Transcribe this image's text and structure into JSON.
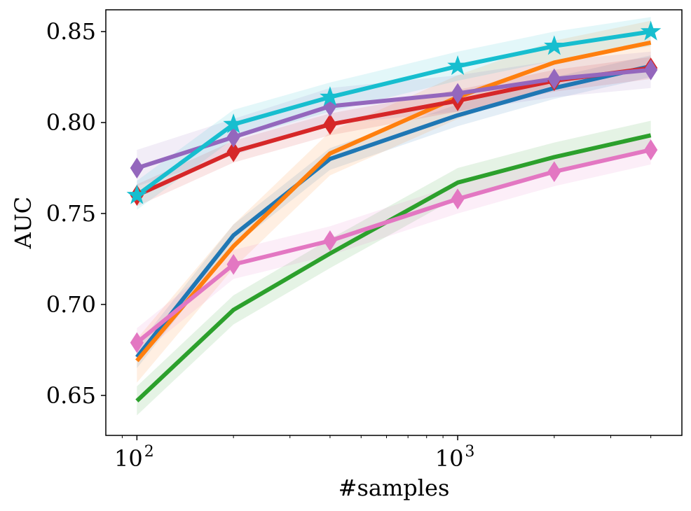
{
  "chart_data": {
    "type": "line",
    "title": "",
    "xlabel": "#samples",
    "ylabel": "AUC",
    "xscale": "log",
    "xlim": [
      80,
      5000
    ],
    "ylim": [
      0.628,
      0.862
    ],
    "x": [
      100,
      200,
      400,
      1000,
      2000,
      4000
    ],
    "yticks": [
      0.65,
      0.7,
      0.75,
      0.8,
      0.85
    ],
    "ytick_labels": [
      "0.65",
      "0.70",
      "0.75",
      "0.80",
      "0.85"
    ],
    "xticks": [
      {
        "value": 100,
        "base": "10",
        "exp": "2"
      },
      {
        "value": 1000,
        "base": "10",
        "exp": "3"
      }
    ],
    "grid": false,
    "series": [
      {
        "name": "blue",
        "color": "#1f77b4",
        "marker": "none",
        "values": [
          0.671,
          0.738,
          0.78,
          0.804,
          0.819,
          0.831
        ],
        "band": 0.006
      },
      {
        "name": "orange",
        "color": "#ff7f0e",
        "marker": "none",
        "values": [
          0.669,
          0.732,
          0.783,
          0.814,
          0.833,
          0.844
        ],
        "band": 0.012
      },
      {
        "name": "green",
        "color": "#2ca02c",
        "marker": "none",
        "values": [
          0.647,
          0.697,
          0.728,
          0.767,
          0.781,
          0.793
        ],
        "band": 0.008
      },
      {
        "name": "red",
        "color": "#d62728",
        "marker": "diamond",
        "values": [
          0.76,
          0.784,
          0.799,
          0.812,
          0.823,
          0.83
        ],
        "band": 0.006
      },
      {
        "name": "purple",
        "color": "#9467bd",
        "marker": "diamond",
        "values": [
          0.775,
          0.792,
          0.809,
          0.816,
          0.824,
          0.829
        ],
        "band": 0.01
      },
      {
        "name": "pink",
        "color": "#e377c2",
        "marker": "diamond",
        "values": [
          0.679,
          0.722,
          0.735,
          0.758,
          0.773,
          0.785
        ],
        "band": 0.008
      },
      {
        "name": "cyan",
        "color": "#17becf",
        "marker": "star",
        "values": [
          0.76,
          0.799,
          0.814,
          0.831,
          0.842,
          0.85
        ],
        "band": 0.008
      }
    ]
  }
}
